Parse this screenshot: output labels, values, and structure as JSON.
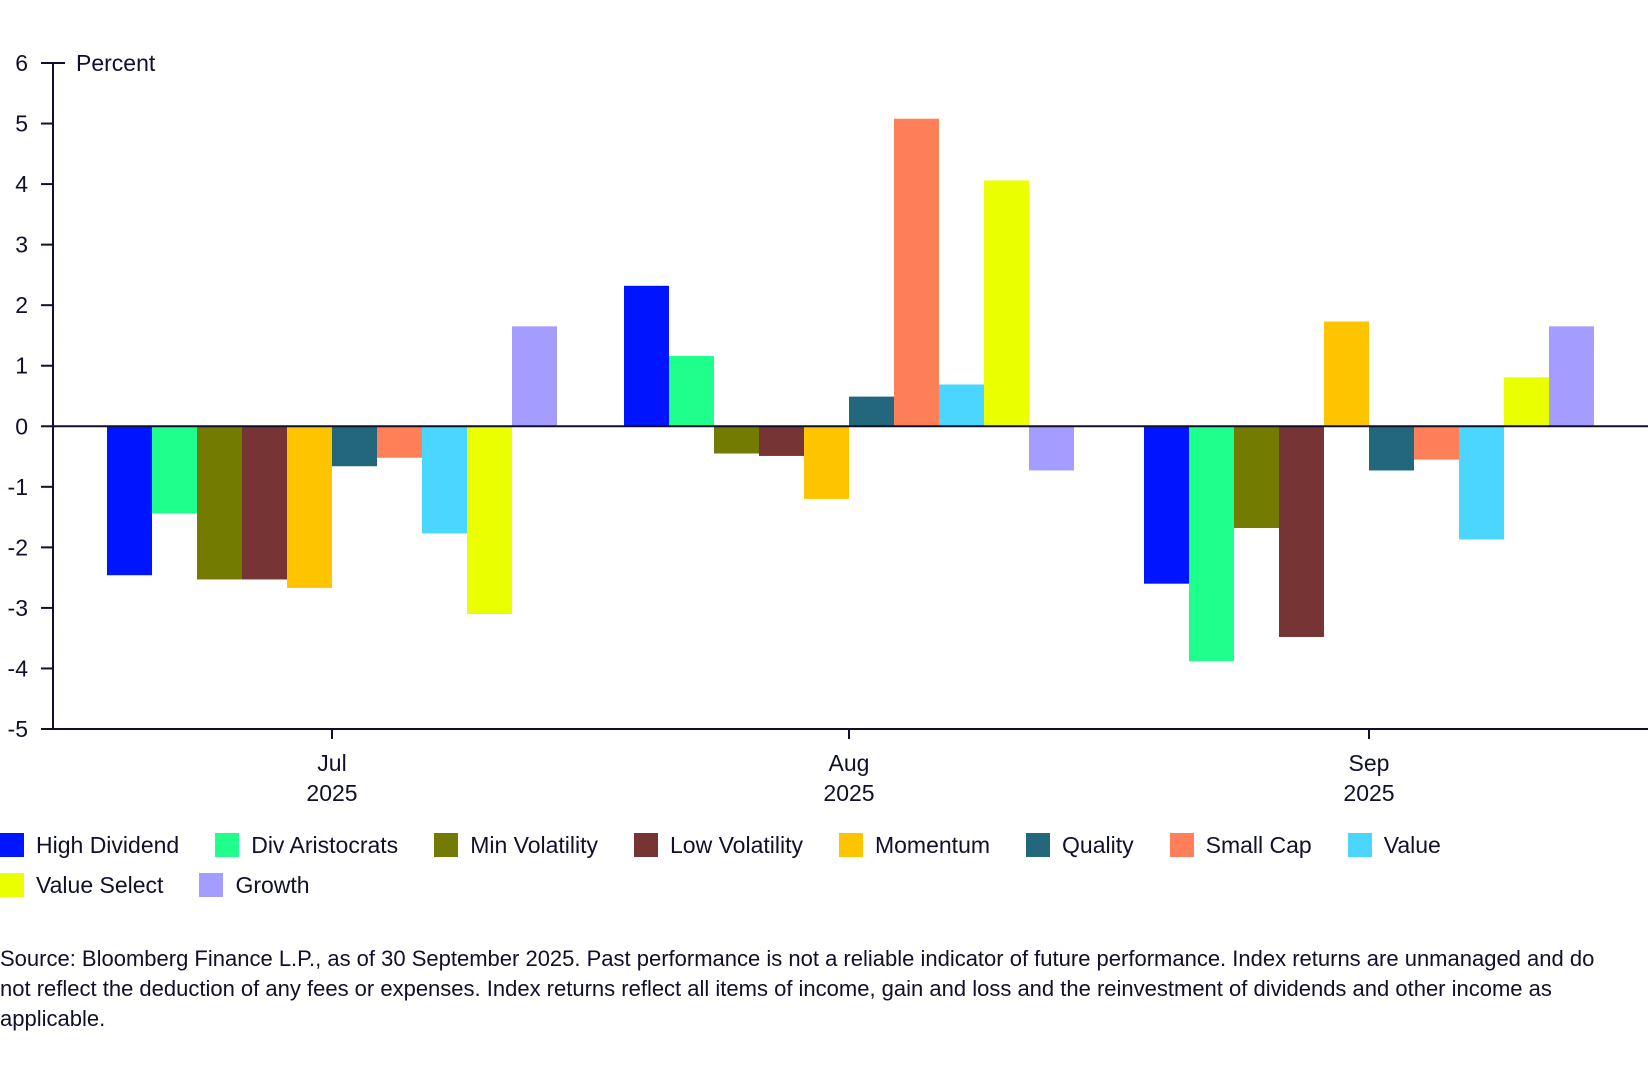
{
  "chart_data": {
    "type": "bar",
    "ylabel": "Percent",
    "ylim": [
      -5,
      6
    ],
    "yticks": [
      6,
      5,
      4,
      3,
      2,
      1,
      0,
      -1,
      -2,
      -3,
      -4,
      -5
    ],
    "grid": false,
    "legend_position": "bottom",
    "categories": [
      {
        "month": "Jul",
        "year": "2025"
      },
      {
        "month": "Aug",
        "year": "2025"
      },
      {
        "month": "Sep",
        "year": "2025"
      }
    ],
    "series": [
      {
        "name": "High Dividend",
        "color": "#0015ff",
        "values": [
          -2.46,
          2.32,
          -2.6
        ]
      },
      {
        "name": "Div Aristocrats",
        "color": "#1fff8c",
        "values": [
          -1.44,
          1.16,
          -3.88
        ]
      },
      {
        "name": "Min Volatility",
        "color": "#737b00",
        "values": [
          -2.53,
          -0.45,
          -1.68
        ]
      },
      {
        "name": "Low Volatility",
        "color": "#763434",
        "values": [
          -2.53,
          -0.49,
          -3.48
        ]
      },
      {
        "name": "Momentum",
        "color": "#ffc400",
        "values": [
          -2.67,
          -1.2,
          1.73
        ]
      },
      {
        "name": "Quality",
        "color": "#22677c",
        "values": [
          -0.66,
          0.49,
          -0.73
        ]
      },
      {
        "name": "Small Cap",
        "color": "#ff7f58",
        "values": [
          -0.52,
          5.08,
          -0.55
        ]
      },
      {
        "name": "Value",
        "color": "#4bd6ff",
        "values": [
          -1.77,
          0.69,
          -1.87
        ]
      },
      {
        "name": "Value Select",
        "color": "#eaff00",
        "values": [
          -3.1,
          4.06,
          0.81
        ]
      },
      {
        "name": "Growth",
        "color": "#a59cff",
        "values": [
          1.65,
          -0.73,
          1.65
        ]
      }
    ]
  },
  "footnote": "Source: Bloomberg Finance L.P., as of 30 September 2025. Past performance is not a reliable indicator of future performance. Index returns are unmanaged and do not reflect the deduction of any fees or expenses. Index returns reflect all items of income, gain and loss and the reinvestment of dividends and other income as applicable."
}
